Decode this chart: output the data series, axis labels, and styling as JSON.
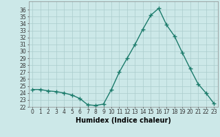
{
  "x": [
    0,
    1,
    2,
    3,
    4,
    5,
    6,
    7,
    8,
    9,
    10,
    11,
    12,
    13,
    14,
    15,
    16,
    17,
    18,
    19,
    20,
    21,
    22,
    23
  ],
  "y": [
    24.5,
    24.5,
    24.3,
    24.2,
    24.0,
    23.7,
    23.2,
    22.3,
    22.2,
    22.4,
    24.5,
    27.0,
    29.0,
    31.0,
    33.2,
    35.2,
    36.2,
    33.8,
    32.2,
    29.8,
    27.5,
    25.3,
    24.0,
    22.5
  ],
  "line_color": "#1a7a6a",
  "marker": "+",
  "marker_size": 4,
  "line_width": 1.0,
  "bg_color": "#cce8e8",
  "grid_color": "#aacccc",
  "xlabel": "Humidex (Indice chaleur)",
  "xlabel_fontsize": 7,
  "ylim_min": 22,
  "ylim_max": 37,
  "xlim_min": -0.5,
  "xlim_max": 23.5,
  "yticks": [
    22,
    23,
    24,
    25,
    26,
    27,
    28,
    29,
    30,
    31,
    32,
    33,
    34,
    35,
    36
  ],
  "xticks": [
    0,
    1,
    2,
    3,
    4,
    5,
    6,
    7,
    8,
    9,
    10,
    11,
    12,
    13,
    14,
    15,
    16,
    17,
    18,
    19,
    20,
    21,
    22,
    23
  ],
  "tick_fontsize": 5.5
}
